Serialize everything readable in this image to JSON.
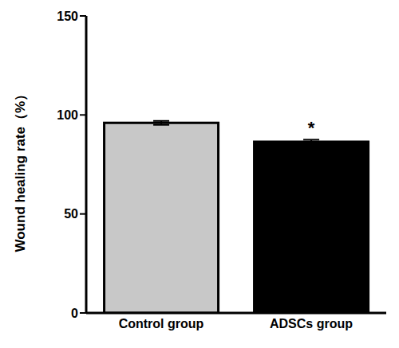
{
  "chart_data": {
    "type": "bar",
    "categories": [
      "Control group",
      "ADSCs group"
    ],
    "values": [
      96,
      86.5
    ],
    "errors": [
      1,
      1
    ],
    "colors": [
      "#c8c8c8",
      "#000000"
    ],
    "ylabel": "Wound healing rate（%）",
    "ylim": [
      0,
      150
    ],
    "yticks": [
      0,
      50,
      100,
      150
    ],
    "grid": false,
    "annotations": [
      "",
      "*"
    ]
  }
}
